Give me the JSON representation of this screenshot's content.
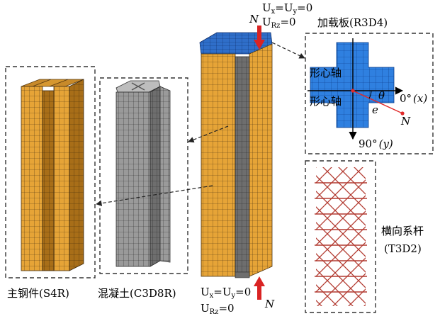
{
  "labels": {
    "steel": "主钢件(S4R)",
    "concrete": "混凝土(C3D8R)",
    "plate": "加载板(R3D4)",
    "ties_line1": "横向系杆",
    "ties_line2": "(T3D2)"
  },
  "top_bc": {
    "line1_base_a": "U",
    "line1_sub_a": "x",
    "line1_eq": "=U",
    "line1_sub_b": "y",
    "line1_tail": "=0",
    "line2_base": "U",
    "line2_sub": "Rz",
    "line2_tail": "=0"
  },
  "bottom_bc": {
    "line1_base_a": "U",
    "line1_sub_a": "x",
    "line1_eq": "=U",
    "line1_sub_b": "y",
    "line1_tail": "=0",
    "line2_base": "U",
    "line2_sub": "Rz",
    "line2_tail": "=0"
  },
  "load": {
    "top_symbol": "N",
    "bottom_symbol": "N"
  },
  "section": {
    "axis_vertical_label": "形心轴",
    "axis_horizontal_label": "形心轴",
    "angle_symbol": "θ",
    "ecc_symbol": "e",
    "load_symbol": "N",
    "x_axis_num": "0",
    "x_axis_deg": "°",
    "x_axis_var": "(x)",
    "y_axis_num": "90",
    "y_axis_deg": "°",
    "y_axis_var": "(y)"
  },
  "colors": {
    "steel": "#e6a437",
    "steel_dark": "#a86e18",
    "concrete": "#8e8e8e",
    "concrete_dark": "#5e5e5e",
    "plate": "#2f6ec9",
    "plate_section": "#2f80e0",
    "ties": "#b23a30",
    "load_arrow": "#d92323"
  }
}
